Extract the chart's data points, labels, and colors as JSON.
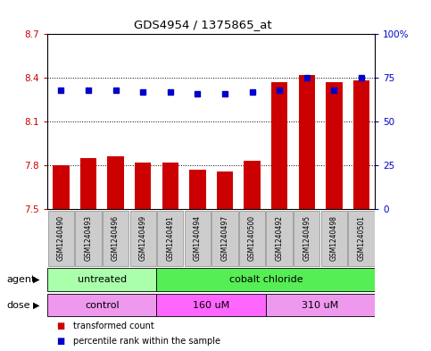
{
  "title": "GDS4954 / 1375865_at",
  "samples": [
    "GSM1240490",
    "GSM1240493",
    "GSM1240496",
    "GSM1240499",
    "GSM1240491",
    "GSM1240494",
    "GSM1240497",
    "GSM1240500",
    "GSM1240492",
    "GSM1240495",
    "GSM1240498",
    "GSM1240501"
  ],
  "transformed_count": [
    7.8,
    7.85,
    7.86,
    7.82,
    7.82,
    7.77,
    7.76,
    7.83,
    8.37,
    8.42,
    8.37,
    8.38
  ],
  "percentile_rank": [
    68,
    68,
    68,
    67,
    67,
    66,
    66,
    67,
    68,
    75,
    68,
    75
  ],
  "ylim_left": [
    7.5,
    8.7
  ],
  "ylim_right": [
    0,
    100
  ],
  "yticks_left": [
    7.5,
    7.8,
    8.1,
    8.4,
    8.7
  ],
  "yticks_right": [
    0,
    25,
    50,
    75,
    100
  ],
  "ytick_labels_left": [
    "7.5",
    "7.8",
    "8.1",
    "8.4",
    "8.7"
  ],
  "ytick_labels_right": [
    "0",
    "25",
    "50",
    "75",
    "100%"
  ],
  "bar_color": "#cc0000",
  "dot_color": "#0000cc",
  "agent_groups": [
    {
      "label": "untreated",
      "start": 0,
      "end": 4,
      "color": "#aaffaa"
    },
    {
      "label": "cobalt chloride",
      "start": 4,
      "end": 12,
      "color": "#55ee55"
    }
  ],
  "dose_groups": [
    {
      "label": "control",
      "start": 0,
      "end": 4,
      "color": "#ee99ee"
    },
    {
      "label": "160 uM",
      "start": 4,
      "end": 8,
      "color": "#ff66ff"
    },
    {
      "label": "310 uM",
      "start": 8,
      "end": 12,
      "color": "#ee99ee"
    }
  ],
  "legend_bar_label": "transformed count",
  "legend_dot_label": "percentile rank within the sample",
  "background_color": "#ffffff",
  "tick_color_left": "#cc0000",
  "tick_color_right": "#0000cc",
  "xticklabel_bg": "#cccccc",
  "agent_label": "agent",
  "dose_label": "dose",
  "bar_width": 0.6
}
